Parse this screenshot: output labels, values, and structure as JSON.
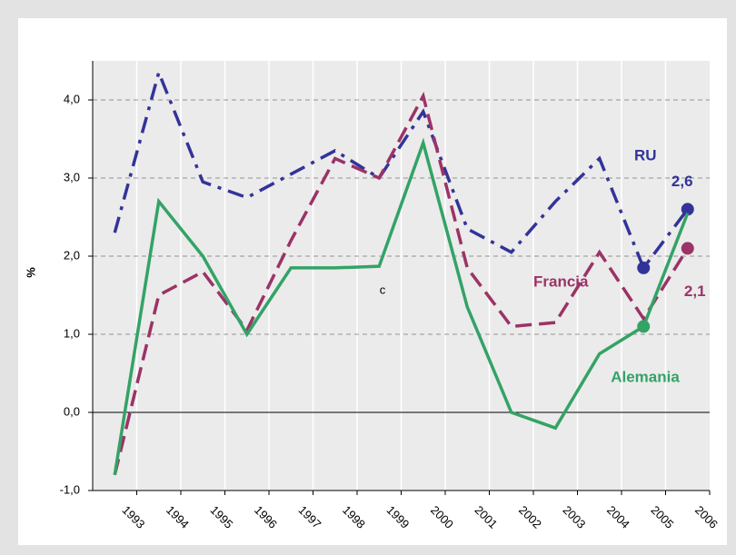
{
  "chart_data": {
    "type": "line",
    "y_label": "%",
    "categories": [
      "1993",
      "1994",
      "1995",
      "1996",
      "1997",
      "1998",
      "1999",
      "2000",
      "2001",
      "2002",
      "2003",
      "2004",
      "2005",
      "2006"
    ],
    "series": [
      {
        "name": "RU",
        "color": "#33339a",
        "dash": "dashdot",
        "values": [
          2.3,
          4.35,
          2.95,
          2.75,
          3.05,
          3.35,
          3.0,
          3.85,
          2.35,
          2.05,
          2.7,
          3.25,
          1.85,
          2.6
        ],
        "value_labels": [
          null,
          null,
          null,
          null,
          null,
          null,
          null,
          null,
          null,
          null,
          null,
          null,
          null,
          "2,6"
        ],
        "markers": [
          12,
          13
        ]
      },
      {
        "name": "Francia",
        "color": "#9b3366",
        "dash": "dash",
        "values": [
          -0.8,
          1.5,
          1.8,
          1.05,
          2.2,
          3.25,
          3.0,
          4.05,
          1.85,
          1.1,
          1.15,
          2.05,
          1.2,
          2.1
        ],
        "value_labels": [
          null,
          null,
          null,
          null,
          null,
          null,
          null,
          null,
          null,
          null,
          null,
          null,
          null,
          "2,1"
        ],
        "markers": [
          13
        ]
      },
      {
        "name": "Alemania",
        "color": "#33a366",
        "dash": "solid",
        "values": [
          -0.8,
          2.7,
          2.0,
          1.0,
          1.85,
          1.85,
          1.87,
          3.45,
          1.35,
          0.0,
          -0.2,
          0.75,
          1.1,
          2.55
        ],
        "markers": [
          12
        ]
      }
    ],
    "annotations": [
      "c"
    ],
    "ylim": [
      -1,
      4.5
    ],
    "yticks": [
      {
        "value": -1,
        "label": "-1,0"
      },
      {
        "value": 0,
        "label": "0,0"
      },
      {
        "value": 1,
        "label": "1,0"
      },
      {
        "value": 2,
        "label": "2,0"
      },
      {
        "value": 3,
        "label": "3,0"
      },
      {
        "value": 4,
        "label": "4,0"
      }
    ],
    "grid": true
  }
}
